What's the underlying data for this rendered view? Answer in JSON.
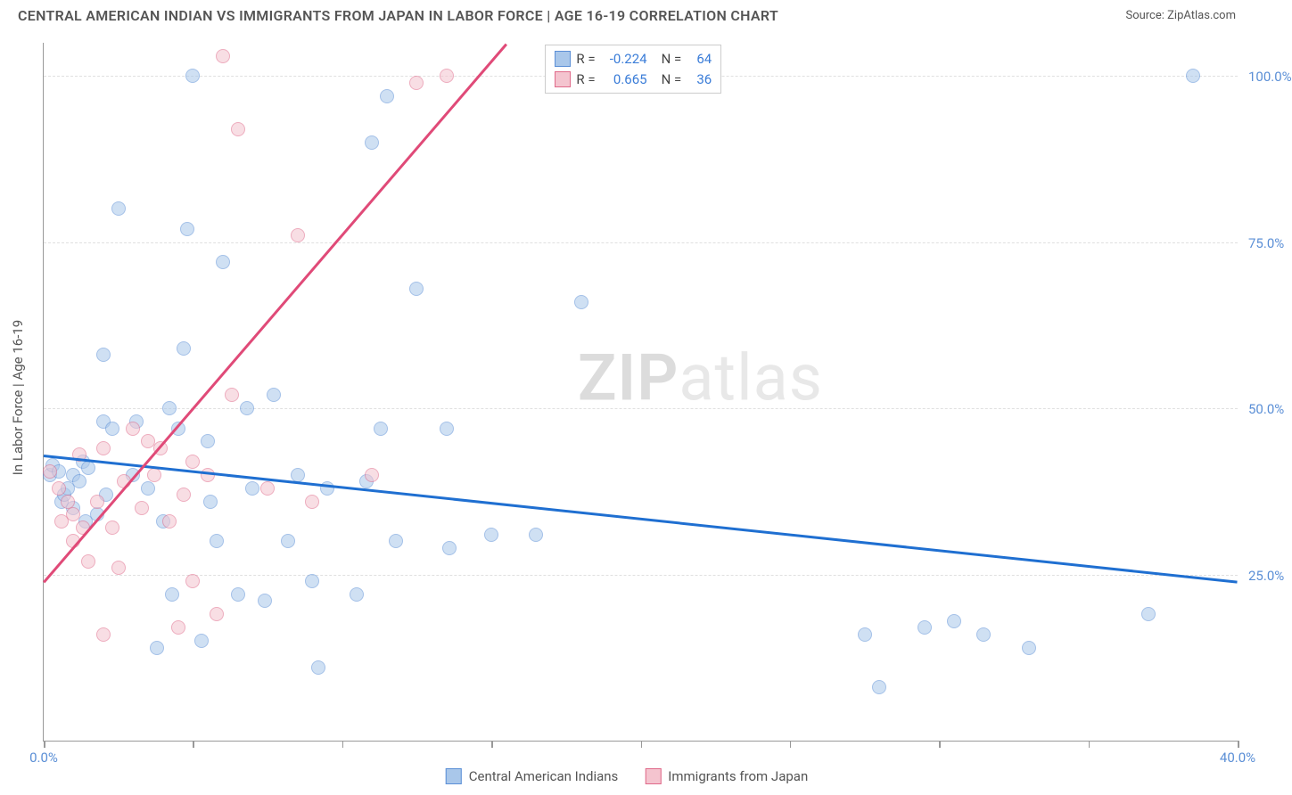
{
  "header": {
    "title": "CENTRAL AMERICAN INDIAN VS IMMIGRANTS FROM JAPAN IN LABOR FORCE | AGE 16-19 CORRELATION CHART",
    "source_prefix": "Source: ",
    "source_name": "ZipAtlas.com"
  },
  "watermark": {
    "zip": "ZIP",
    "atlas": "atlas"
  },
  "chart": {
    "type": "scatter",
    "y_axis_label": "In Labor Force | Age 16-19",
    "xlim": [
      0,
      40
    ],
    "ylim": [
      0,
      105
    ],
    "x_ticks": [
      0,
      5,
      10,
      15,
      20,
      25,
      30,
      35,
      40
    ],
    "x_tick_labels": {
      "0": "0.0%",
      "40": "40.0%"
    },
    "y_gridlines": [
      25,
      50,
      75,
      100
    ],
    "y_tick_labels": [
      "25.0%",
      "50.0%",
      "75.0%",
      "100.0%"
    ],
    "background_color": "#ffffff",
    "grid_color": "#e0e0e0",
    "axis_color": "#999999",
    "point_radius": 8,
    "point_opacity": 0.55,
    "series": [
      {
        "name": "Central American Indians",
        "color_fill": "#a9c7ea",
        "color_stroke": "#5b8fd6",
        "R": "-0.224",
        "N": "64",
        "trend": {
          "x1": 0,
          "y1": 43,
          "x2": 40,
          "y2": 24,
          "color": "#1f6fd1"
        },
        "points": [
          [
            0.2,
            40
          ],
          [
            0.3,
            41.5
          ],
          [
            0.5,
            40.5
          ],
          [
            0.6,
            36
          ],
          [
            0.7,
            37
          ],
          [
            0.8,
            38
          ],
          [
            1.0,
            35
          ],
          [
            1.0,
            40
          ],
          [
            1.2,
            39
          ],
          [
            1.3,
            42
          ],
          [
            1.4,
            33
          ],
          [
            1.5,
            41
          ],
          [
            1.8,
            34
          ],
          [
            2.0,
            48
          ],
          [
            2.0,
            58
          ],
          [
            2.1,
            37
          ],
          [
            2.3,
            47
          ],
          [
            2.5,
            80
          ],
          [
            3.0,
            40
          ],
          [
            3.1,
            48
          ],
          [
            3.5,
            38
          ],
          [
            3.8,
            14
          ],
          [
            4.0,
            33
          ],
          [
            4.2,
            50
          ],
          [
            4.3,
            22
          ],
          [
            4.5,
            47
          ],
          [
            4.7,
            59
          ],
          [
            4.8,
            77
          ],
          [
            5.0,
            100
          ],
          [
            5.3,
            15
          ],
          [
            5.5,
            45
          ],
          [
            5.6,
            36
          ],
          [
            5.8,
            30
          ],
          [
            6.0,
            72
          ],
          [
            6.5,
            22
          ],
          [
            6.8,
            50
          ],
          [
            7.0,
            38
          ],
          [
            7.4,
            21
          ],
          [
            7.7,
            52
          ],
          [
            8.2,
            30
          ],
          [
            8.5,
            40
          ],
          [
            9.0,
            24
          ],
          [
            9.2,
            11
          ],
          [
            9.5,
            38
          ],
          [
            10.5,
            22
          ],
          [
            10.8,
            39
          ],
          [
            11.0,
            90
          ],
          [
            11.3,
            47
          ],
          [
            11.5,
            97
          ],
          [
            11.8,
            30
          ],
          [
            12.5,
            68
          ],
          [
            13.5,
            47
          ],
          [
            13.6,
            29
          ],
          [
            15.0,
            31
          ],
          [
            16.5,
            31
          ],
          [
            18.0,
            66
          ],
          [
            27.5,
            16
          ],
          [
            28.0,
            8
          ],
          [
            29.5,
            17
          ],
          [
            30.5,
            18
          ],
          [
            31.5,
            16
          ],
          [
            33.0,
            14
          ],
          [
            37.0,
            19
          ],
          [
            38.5,
            100
          ]
        ]
      },
      {
        "name": "Immigrants from Japan",
        "color_fill": "#f4c4cf",
        "color_stroke": "#e06a8a",
        "R": "0.665",
        "N": "36",
        "trend": {
          "x1": 0,
          "y1": 24,
          "x2": 15.5,
          "y2": 105,
          "color": "#e04a78"
        },
        "points": [
          [
            0.2,
            40.5
          ],
          [
            0.5,
            38
          ],
          [
            0.6,
            33
          ],
          [
            0.8,
            36
          ],
          [
            1.0,
            30
          ],
          [
            1.0,
            34
          ],
          [
            1.2,
            43
          ],
          [
            1.3,
            32
          ],
          [
            1.5,
            27
          ],
          [
            1.8,
            36
          ],
          [
            2.0,
            44
          ],
          [
            2.0,
            16
          ],
          [
            2.3,
            32
          ],
          [
            2.5,
            26
          ],
          [
            2.7,
            39
          ],
          [
            3.0,
            47
          ],
          [
            3.3,
            35
          ],
          [
            3.5,
            45
          ],
          [
            3.7,
            40
          ],
          [
            3.9,
            44
          ],
          [
            4.2,
            33
          ],
          [
            4.5,
            17
          ],
          [
            4.7,
            37
          ],
          [
            5.0,
            24
          ],
          [
            5.0,
            42
          ],
          [
            5.5,
            40
          ],
          [
            5.8,
            19
          ],
          [
            6.0,
            103
          ],
          [
            6.3,
            52
          ],
          [
            6.5,
            92
          ],
          [
            7.5,
            38
          ],
          [
            8.5,
            76
          ],
          [
            9.0,
            36
          ],
          [
            11.0,
            40
          ],
          [
            12.5,
            99
          ],
          [
            13.5,
            100
          ]
        ]
      }
    ]
  },
  "bottom_legend": [
    {
      "label": "Central American Indians",
      "fill": "#a9c7ea",
      "stroke": "#5b8fd6"
    },
    {
      "label": "Immigrants from Japan",
      "fill": "#f4c4cf",
      "stroke": "#e06a8a"
    }
  ]
}
